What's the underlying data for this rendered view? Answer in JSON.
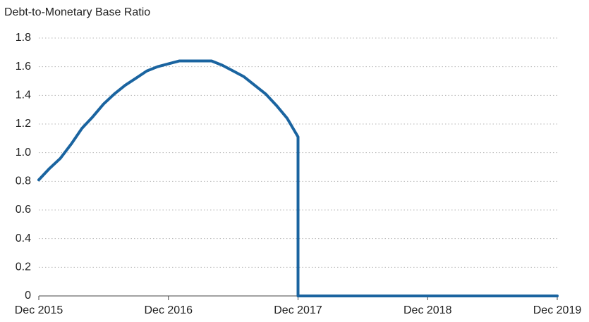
{
  "chart_data": {
    "type": "line",
    "y_label": "Debt-to-Monetary Base Ratio",
    "xlim": [
      2015.917,
      2019.917
    ],
    "xticks": [
      {
        "value": 2015.917,
        "label": "Dec 2015"
      },
      {
        "value": 2016.917,
        "label": "Dec 2016"
      },
      {
        "value": 2017.917,
        "label": "Dec 2017"
      },
      {
        "value": 2018.917,
        "label": "Dec 2018"
      },
      {
        "value": 2019.917,
        "label": "Dec 2019"
      }
    ],
    "ylim": [
      0,
      1.8
    ],
    "yticks": [
      0,
      0.2,
      0.4,
      0.6,
      0.8,
      {
        "value": 1,
        "label": "1.0"
      },
      1.2,
      1.4,
      1.6,
      1.8
    ],
    "grid": true,
    "series": [
      {
        "color": "#1a64a0",
        "x": [
          2015.917,
          2016,
          2016.083,
          2016.167,
          2016.25,
          2016.333,
          2016.417,
          2016.5,
          2016.583,
          2016.667,
          2016.75,
          2016.833,
          2016.917,
          2017,
          2017.083,
          2017.167,
          2017.25,
          2017.333,
          2017.417,
          2017.5,
          2017.583,
          2017.667,
          2017.75,
          2017.833,
          2017.917,
          2017.917,
          2019.917
        ],
        "values": [
          0.81,
          0.89,
          0.96,
          1.06,
          1.17,
          1.25,
          1.34,
          1.41,
          1.47,
          1.52,
          1.57,
          1.6,
          1.62,
          1.64,
          1.64,
          1.64,
          1.64,
          1.61,
          1.57,
          1.53,
          1.47,
          1.41,
          1.33,
          1.24,
          1.11,
          0,
          0
        ]
      }
    ]
  }
}
